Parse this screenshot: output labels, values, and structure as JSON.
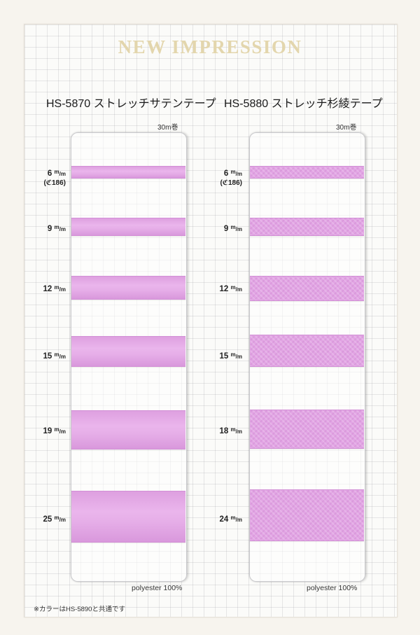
{
  "brand": "NEW IMPRESSION",
  "left": {
    "title": "HS-5870 ストレッチサテンテープ",
    "roll": "30m巻",
    "material": "polyester  100%",
    "sizes": [
      {
        "num": "6",
        "sub": "(ℭ186)"
      },
      {
        "num": "9"
      },
      {
        "num": "12"
      },
      {
        "num": "15"
      },
      {
        "num": "19"
      },
      {
        "num": "25"
      }
    ]
  },
  "right": {
    "title": "HS-5880 ストレッチ杉綾テープ",
    "roll": "30m巻",
    "material": "polyester  100%",
    "sizes": [
      {
        "num": "6",
        "sub": "(ℭ186)"
      },
      {
        "num": "9"
      },
      {
        "num": "12"
      },
      {
        "num": "15"
      },
      {
        "num": "18"
      },
      {
        "num": "24"
      }
    ]
  },
  "unit_top": "m",
  "unit_bottom": "/m",
  "note": "※カラーはHS-5890と共通です",
  "colors": {
    "tape": "#e4a8e6",
    "brand": "#e3d6ad"
  }
}
